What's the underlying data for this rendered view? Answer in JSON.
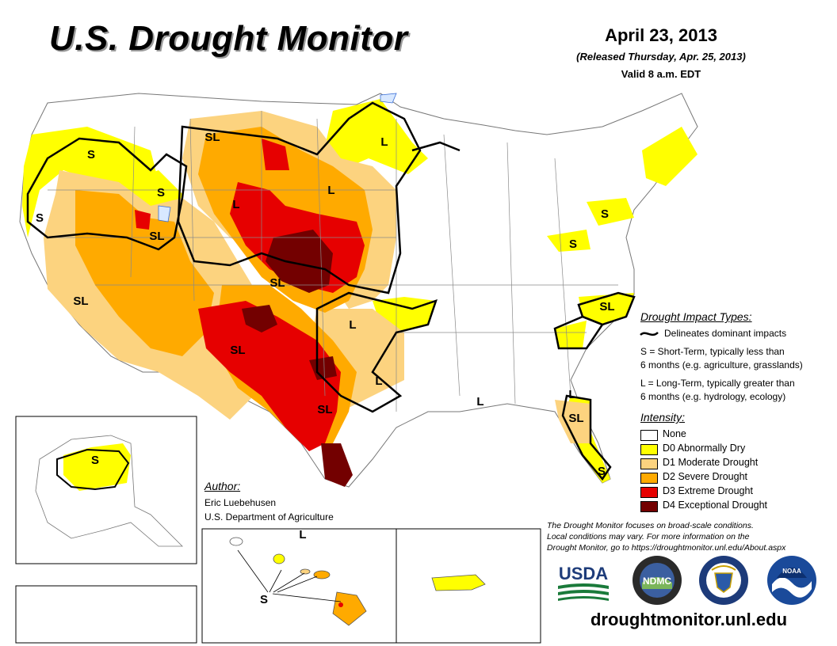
{
  "header": {
    "title": "U.S. Drought Monitor",
    "date": "April 23, 2013",
    "released": "(Released Thursday, Apr. 25, 2013)",
    "valid": "Valid 8 a.m. EDT"
  },
  "impact_types": {
    "heading": "Drought Impact Types:",
    "line_label": "Delineates dominant impacts",
    "s_lines": [
      "S = Short-Term, typically less than",
      "6 months (e.g. agriculture, grasslands)"
    ],
    "l_lines": [
      "L = Long-Term, typically greater than",
      "6 months (e.g. hydrology, ecology)"
    ]
  },
  "intensity": {
    "heading": "Intensity:",
    "levels": [
      {
        "label": "None",
        "color": "#ffffff"
      },
      {
        "label": "D0 Abnormally Dry",
        "color": "#ffff00"
      },
      {
        "label": "D1 Moderate Drought",
        "color": "#fcd37f"
      },
      {
        "label": "D2 Severe Drought",
        "color": "#ffaa00"
      },
      {
        "label": "D3 Extreme Drought",
        "color": "#e60000"
      },
      {
        "label": "D4 Exceptional Drought",
        "color": "#730000"
      }
    ]
  },
  "author": {
    "heading": "Author:",
    "name": "Eric Luebehusen",
    "org": "U.S. Department of Agriculture"
  },
  "note_lines": [
    "The Drought Monitor focuses on broad-scale conditions.",
    "Local conditions may vary. For more information on the",
    "Drought Monitor, go to https://droughtmonitor.unl.edu/About.aspx"
  ],
  "url": "droughtmonitor.unl.edu",
  "logos": {
    "usda": "USDA",
    "ndmc": "NDMC",
    "noaa": "NOAA"
  },
  "map_labels": [
    {
      "text": "S",
      "region": "washington-oregon"
    },
    {
      "text": "S",
      "region": "california-north-coast"
    },
    {
      "text": "S",
      "region": "idaho-montana"
    },
    {
      "text": "SL",
      "region": "montana-north"
    },
    {
      "text": "L",
      "region": "minnesota"
    },
    {
      "text": "L",
      "region": "wisconsin-iowa"
    },
    {
      "text": "L",
      "region": "wyoming-colorado"
    },
    {
      "text": "SL",
      "region": "nevada-utah"
    },
    {
      "text": "SL",
      "region": "kansas"
    },
    {
      "text": "SL",
      "region": "southwest"
    },
    {
      "text": "SL",
      "region": "new-mexico-texas"
    },
    {
      "text": "L",
      "region": "arkansas-oklahoma"
    },
    {
      "text": "L",
      "region": "louisiana"
    },
    {
      "text": "SL",
      "region": "south-texas"
    },
    {
      "text": "L",
      "region": "gulf-coast"
    },
    {
      "text": "S",
      "region": "pennsylvania"
    },
    {
      "text": "S",
      "region": "virginia"
    },
    {
      "text": "SL",
      "region": "north-carolina"
    },
    {
      "text": "L",
      "region": "georgia-coast"
    },
    {
      "text": "SL",
      "region": "florida-north"
    },
    {
      "text": "S",
      "region": "florida-south"
    },
    {
      "text": "S",
      "region": "alaska"
    },
    {
      "text": "L",
      "region": "hawaii-north"
    },
    {
      "text": "S",
      "region": "hawaii"
    }
  ]
}
